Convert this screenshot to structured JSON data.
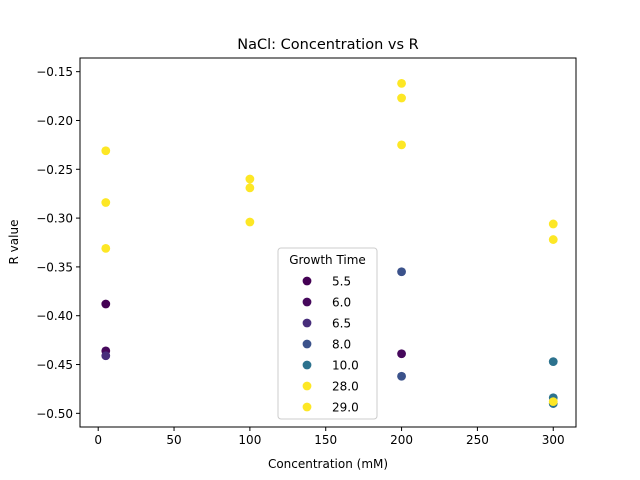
{
  "chart_data": {
    "type": "scatter",
    "title": "NaCl: Concentration vs R",
    "xlabel": "Concentration (mM)",
    "ylabel": "R value",
    "xlim": [
      -12,
      315
    ],
    "ylim": [
      -0.514,
      -0.136
    ],
    "xticks": [
      0,
      50,
      100,
      150,
      200,
      250,
      300
    ],
    "xtick_labels": [
      "0",
      "50",
      "100",
      "150",
      "200",
      "250",
      "300"
    ],
    "yticks": [
      -0.5,
      -0.45,
      -0.4,
      -0.35,
      -0.3,
      -0.25,
      -0.2,
      -0.15
    ],
    "ytick_labels": [
      "−0.50",
      "−0.45",
      "−0.40",
      "−0.35",
      "−0.30",
      "−0.25",
      "−0.20",
      "−0.15"
    ],
    "grid": false,
    "legend": {
      "title": "Growth Time",
      "placement": "lower center"
    },
    "series": [
      {
        "name": "5.5",
        "color": "#440154",
        "points": [
          [
            5,
            -0.388
          ]
        ]
      },
      {
        "name": "6.0",
        "color": "#46085c",
        "points": [
          [
            5,
            -0.436
          ],
          [
            200,
            -0.439
          ]
        ]
      },
      {
        "name": "6.5",
        "color": "#472d7b",
        "points": [
          [
            5,
            -0.441
          ]
        ]
      },
      {
        "name": "8.0",
        "color": "#3b528b",
        "points": [
          [
            200,
            -0.355
          ],
          [
            200,
            -0.462
          ]
        ]
      },
      {
        "name": "10.0",
        "color": "#2c728e",
        "points": [
          [
            300,
            -0.447
          ],
          [
            300,
            -0.484
          ],
          [
            300,
            -0.49
          ]
        ]
      },
      {
        "name": "28.0",
        "color": "#fde725",
        "points": [
          [
            5,
            -0.231
          ],
          [
            5,
            -0.284
          ],
          [
            5,
            -0.331
          ],
          [
            100,
            -0.26
          ],
          [
            100,
            -0.269
          ],
          [
            200,
            -0.162
          ],
          [
            200,
            -0.177
          ],
          [
            200,
            -0.225
          ],
          [
            300,
            -0.306
          ],
          [
            300,
            -0.322
          ]
        ]
      },
      {
        "name": "29.0",
        "color": "#fde725",
        "points": [
          [
            100,
            -0.304
          ],
          [
            300,
            -0.488
          ]
        ]
      }
    ]
  }
}
